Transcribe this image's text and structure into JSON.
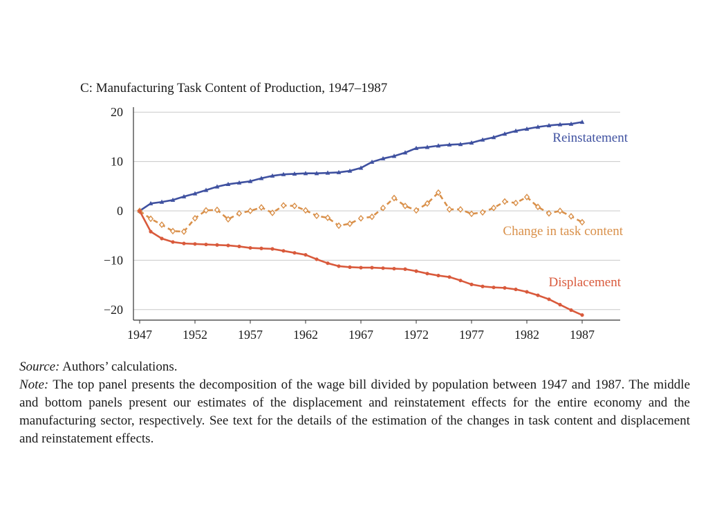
{
  "chart_data": {
    "type": "line",
    "title": "C: Manufacturing Task Content of Production, 1947–1987",
    "xlim": [
      1947,
      1990
    ],
    "ylim": [
      -22,
      20
    ],
    "x_ticks": [
      1947,
      1952,
      1957,
      1962,
      1967,
      1972,
      1977,
      1982,
      1987
    ],
    "y_ticks": [
      20,
      10,
      0,
      -10,
      -20
    ],
    "y_tick_labels": [
      "20",
      "10",
      "0",
      "−10",
      "−20"
    ],
    "grid": "horizontal",
    "x": [
      1947,
      1948,
      1949,
      1950,
      1951,
      1952,
      1953,
      1954,
      1955,
      1956,
      1957,
      1958,
      1959,
      1960,
      1961,
      1962,
      1963,
      1964,
      1965,
      1966,
      1967,
      1968,
      1969,
      1970,
      1971,
      1972,
      1973,
      1974,
      1975,
      1976,
      1977,
      1978,
      1979,
      1980,
      1981,
      1982,
      1983,
      1984,
      1985,
      1986,
      1987
    ],
    "series": [
      {
        "name": "Reinstatement",
        "color": "#3f51a0",
        "marker": "triangle",
        "dashed": false,
        "values": [
          0,
          1.5,
          1.8,
          2.2,
          2.9,
          3.5,
          4.2,
          4.9,
          5.4,
          5.7,
          6.0,
          6.6,
          7.1,
          7.4,
          7.5,
          7.6,
          7.6,
          7.7,
          7.8,
          8.1,
          8.7,
          9.9,
          10.6,
          11.1,
          11.8,
          12.7,
          12.9,
          13.2,
          13.4,
          13.5,
          13.8,
          14.4,
          14.9,
          15.6,
          16.2,
          16.6,
          17.0,
          17.3,
          17.5,
          17.6,
          18.0
        ]
      },
      {
        "name": "Change in task content",
        "color": "#d9904a",
        "marker": "diamond",
        "dashed": true,
        "values": [
          0,
          -1.6,
          -2.8,
          -4.1,
          -4.2,
          -1.5,
          0.1,
          0.2,
          -1.7,
          -0.5,
          0.0,
          0.7,
          -0.4,
          1.1,
          1.0,
          0.1,
          -1.0,
          -1.4,
          -3.0,
          -2.6,
          -1.5,
          -1.2,
          0.6,
          2.6,
          1.0,
          0.1,
          1.5,
          3.7,
          0.3,
          0.3,
          -0.6,
          -0.3,
          0.6,
          1.9,
          1.6,
          2.8,
          0.8,
          -0.5,
          0.0,
          -1.1,
          -2.3
        ]
      },
      {
        "name": "Displacement",
        "color": "#d95a3c",
        "marker": "circle",
        "dashed": false,
        "values": [
          0,
          -4.2,
          -5.6,
          -6.3,
          -6.6,
          -6.7,
          -6.8,
          -6.9,
          -7.0,
          -7.2,
          -7.5,
          -7.6,
          -7.7,
          -8.1,
          -8.5,
          -8.9,
          -9.8,
          -10.6,
          -11.2,
          -11.4,
          -11.5,
          -11.5,
          -11.6,
          -11.7,
          -11.8,
          -12.2,
          -12.7,
          -13.1,
          -13.4,
          -14.1,
          -14.9,
          -15.3,
          -15.5,
          -15.6,
          -15.9,
          -16.4,
          -17.1,
          -17.9,
          -19.0,
          -20.1,
          -21.1
        ]
      }
    ]
  },
  "caption": {
    "source_label": "Source:",
    "source_text": " Authors’ calculations.",
    "note_label": "Note:",
    "note_text": " The top panel presents the decomposition of the wage bill divided by population between 1947 and 1987. The middle and bottom panels present our estimates of the displacement and reinstatement effects for the entire economy and the manufacturing sector, respectively. See text for the details of the estimation of the changes in task content and displacement and reinstatement effects."
  }
}
